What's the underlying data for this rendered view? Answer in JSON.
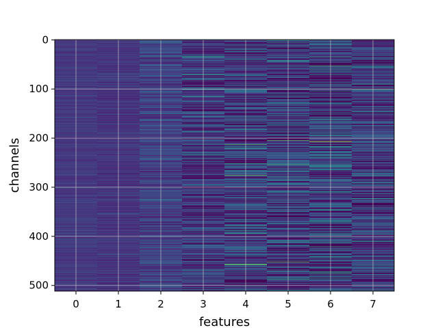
{
  "chart_data": {
    "type": "heatmap",
    "title": "",
    "xlabel": "features",
    "ylabel": "channels",
    "x_categories": [
      "0",
      "1",
      "2",
      "3",
      "4",
      "5",
      "6",
      "7"
    ],
    "y_ticks": [
      0,
      100,
      200,
      300,
      400,
      500
    ],
    "y_range": [
      0,
      511
    ],
    "y_inverted": true,
    "grid": true,
    "colormap": "viridis",
    "column_variability": [
      0.04,
      0.05,
      0.11,
      0.2,
      0.24,
      0.26,
      0.3,
      0.22
    ],
    "column_base_level": [
      0.18,
      0.17,
      0.2,
      0.16,
      0.18,
      0.16,
      0.17,
      0.17
    ],
    "highlights": [
      {
        "feature": 6,
        "channel": 207,
        "level": 0.92
      },
      {
        "feature": 4,
        "channel": 457,
        "level": 0.8
      },
      {
        "feature": 4,
        "channel": 213,
        "level": 0.7
      },
      {
        "feature": 3,
        "channel": 35,
        "level": 0.62
      },
      {
        "feature": 5,
        "channel": 43,
        "level": 0.6
      },
      {
        "feature": 7,
        "channel": 90,
        "level": 0.6
      },
      {
        "feature": 5,
        "channel": 487,
        "level": 0.62
      },
      {
        "feature": 6,
        "channel": 347,
        "level": 0.6
      },
      {
        "feature": 7,
        "channel": 277,
        "level": 0.55
      },
      {
        "feature": 4,
        "channel": 378,
        "level": 0.58
      },
      {
        "feature": 6,
        "channel": 257,
        "level": 0.5
      }
    ]
  },
  "colors": {
    "background": "#ffffff",
    "grid": "#d0d0d0",
    "axis": "#000000"
  }
}
